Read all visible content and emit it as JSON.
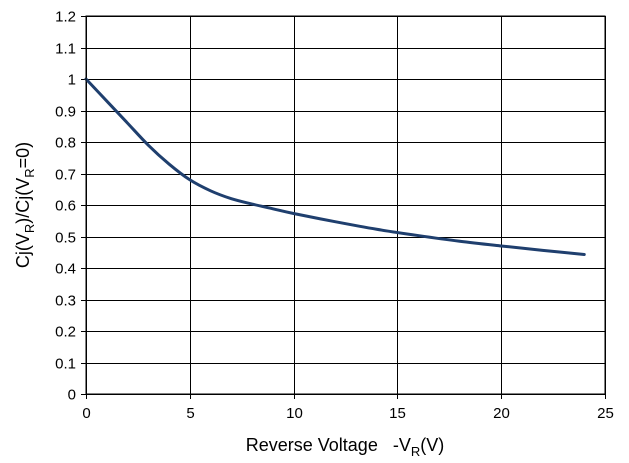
{
  "chart_data": {
    "type": "line",
    "title": "",
    "grid": true,
    "legend": "none",
    "xlabel": {
      "prefix": "Reverse Voltage   -V",
      "sub": "R",
      "suffix": "(V)"
    },
    "ylabel": {
      "parts": [
        {
          "t": "Cj(V",
          "sub": false
        },
        {
          "t": "R",
          "sub": true
        },
        {
          "t": ")/Cj(V",
          "sub": false
        },
        {
          "t": "R",
          "sub": true
        },
        {
          "t": "=0)",
          "sub": false
        }
      ]
    },
    "xlim": [
      0,
      25
    ],
    "ylim": [
      0,
      1.2
    ],
    "x_ticks": [
      "0",
      "5",
      "10",
      "15",
      "20",
      "25"
    ],
    "y_ticks": [
      "0",
      "0.1",
      "0.2",
      "0.3",
      "0.4",
      "0.5",
      "0.6",
      "0.7",
      "0.8",
      "0.9",
      "1",
      "1.1",
      "1.2"
    ],
    "series": [
      {
        "color": "#1f3f6e",
        "x": [
          0,
          1,
          2,
          3,
          4,
          5,
          6,
          7,
          8,
          9,
          10,
          12,
          14,
          16,
          18,
          20,
          22,
          24
        ],
        "y": [
          1.0,
          0.93,
          0.86,
          0.79,
          0.73,
          0.68,
          0.645,
          0.62,
          0.603,
          0.588,
          0.573,
          0.547,
          0.523,
          0.503,
          0.485,
          0.47,
          0.456,
          0.443
        ]
      }
    ]
  }
}
